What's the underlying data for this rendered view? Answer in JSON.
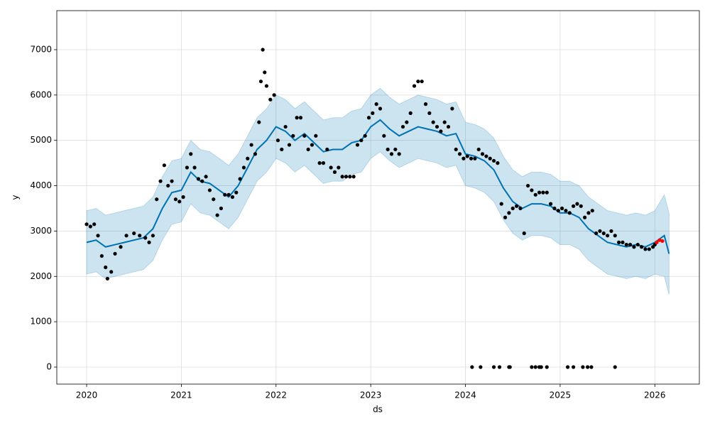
{
  "chart_data": {
    "type": "scatter",
    "x_label": "ds",
    "y_label": "y",
    "xlim": [
      2019.685,
      2026.47
    ],
    "ylim": [
      -376,
      7861
    ],
    "xticks": [
      2020,
      2021,
      2022,
      2023,
      2024,
      2025,
      2026
    ],
    "yticks": [
      0,
      1000,
      2000,
      3000,
      4000,
      5000,
      6000,
      7000
    ],
    "grid": true,
    "forecast": {
      "color": "#0072b2",
      "x": [
        2020,
        2020.1,
        2020.2,
        2020.3,
        2020.4,
        2020.5,
        2020.6,
        2020.7,
        2020.8,
        2020.9,
        2021,
        2021.1,
        2021.2,
        2021.3,
        2021.4,
        2021.5,
        2021.6,
        2021.7,
        2021.8,
        2021.9,
        2022,
        2022.1,
        2022.2,
        2022.3,
        2022.4,
        2022.5,
        2022.6,
        2022.7,
        2022.8,
        2022.9,
        2023,
        2023.1,
        2023.2,
        2023.3,
        2023.4,
        2023.5,
        2023.6,
        2023.7,
        2023.8,
        2023.9,
        2024,
        2024.1,
        2024.2,
        2024.3,
        2024.4,
        2024.5,
        2024.6,
        2024.7,
        2024.8,
        2024.9,
        2025,
        2025.1,
        2025.2,
        2025.3,
        2025.4,
        2025.5,
        2025.6,
        2025.7,
        2025.8,
        2025.9,
        2026,
        2026.1,
        2026.15
      ],
      "values": [
        2750,
        2800,
        2650,
        2700,
        2750,
        2800,
        2850,
        3050,
        3500,
        3850,
        3900,
        4300,
        4100,
        4050,
        3900,
        3750,
        4000,
        4400,
        4800,
        5000,
        5300,
        5200,
        5000,
        5150,
        4950,
        4750,
        4800,
        4800,
        4950,
        5000,
        5300,
        5450,
        5250,
        5100,
        5200,
        5300,
        5250,
        5200,
        5100,
        5150,
        4700,
        4650,
        4550,
        4350,
        3950,
        3650,
        3500,
        3600,
        3600,
        3550,
        3400,
        3400,
        3300,
        3050,
        2900,
        2750,
        2700,
        2650,
        2700,
        2650,
        2750,
        2900,
        2500
      ],
      "lower": [
        2050,
        2100,
        1950,
        2000,
        2050,
        2100,
        2150,
        2350,
        2800,
        3150,
        3200,
        3600,
        3400,
        3350,
        3200,
        3050,
        3300,
        3700,
        4100,
        4300,
        4600,
        4500,
        4300,
        4450,
        4250,
        4050,
        4100,
        4100,
        4250,
        4300,
        4600,
        4750,
        4550,
        4400,
        4500,
        4600,
        4550,
        4500,
        4400,
        4450,
        4000,
        3950,
        3850,
        3650,
        3250,
        2950,
        2800,
        2900,
        2900,
        2850,
        2700,
        2700,
        2600,
        2350,
        2200,
        2050,
        2000,
        1950,
        2000,
        1950,
        2050,
        2000,
        1600
      ],
      "upper": [
        3450,
        3500,
        3350,
        3400,
        3450,
        3500,
        3550,
        3750,
        4200,
        4550,
        4600,
        5000,
        4800,
        4750,
        4600,
        4450,
        4700,
        5100,
        5500,
        5700,
        6000,
        5900,
        5700,
        5850,
        5650,
        5450,
        5500,
        5500,
        5650,
        5700,
        6000,
        6150,
        5950,
        5800,
        5900,
        6000,
        5950,
        5900,
        5800,
        5850,
        5400,
        5350,
        5250,
        5050,
        4650,
        4350,
        4200,
        4300,
        4300,
        4250,
        4100,
        4100,
        4000,
        3750,
        3600,
        3450,
        3400,
        3350,
        3400,
        3350,
        3450,
        3800,
        3400
      ]
    },
    "series": [
      {
        "color": "#000000",
        "x": [
          2020,
          2020.04,
          2020.08,
          2020.12,
          2020.16,
          2020.2,
          2020.22,
          2020.26,
          2020.3,
          2020.36,
          2020.42,
          2020.5,
          2020.56,
          2020.62,
          2020.66,
          2020.7,
          2020.74,
          2020.78,
          2020.82,
          2020.86,
          2020.9,
          2020.94,
          2020.98,
          2021.02,
          2021.06,
          2021.1,
          2021.14,
          2021.18,
          2021.22,
          2021.26,
          2021.3,
          2021.34,
          2021.38,
          2021.42,
          2021.46,
          2021.5,
          2021.54,
          2021.58,
          2021.62,
          2021.66,
          2021.7,
          2021.74,
          2021.78,
          2021.82,
          2021.84,
          2021.86,
          2021.88,
          2021.9,
          2021.94,
          2021.98,
          2022.02,
          2022.06,
          2022.1,
          2022.14,
          2022.18,
          2022.22,
          2022.26,
          2022.3,
          2022.34,
          2022.38,
          2022.42,
          2022.46,
          2022.5,
          2022.54,
          2022.58,
          2022.62,
          2022.66,
          2022.7,
          2022.74,
          2022.78,
          2022.82,
          2022.86,
          2022.9,
          2022.94,
          2022.98,
          2023.02,
          2023.06,
          2023.1,
          2023.14,
          2023.18,
          2023.22,
          2023.26,
          2023.3,
          2023.34,
          2023.38,
          2023.42,
          2023.46,
          2023.5,
          2023.54,
          2023.58,
          2023.62,
          2023.66,
          2023.7,
          2023.74,
          2023.78,
          2023.82,
          2023.86,
          2023.9,
          2023.94,
          2023.98,
          2024.02,
          2024.06,
          2024.1,
          2024.14,
          2024.18,
          2024.22,
          2024.26,
          2024.3,
          2024.34,
          2024.38,
          2024.42,
          2024.46,
          2024.5,
          2024.54,
          2024.58,
          2024.62,
          2024.66,
          2024.7,
          2024.74,
          2024.78,
          2024.82,
          2024.86,
          2024.9,
          2024.94,
          2024.98,
          2025.02,
          2025.06,
          2025.1,
          2025.14,
          2025.18,
          2025.22,
          2025.26,
          2025.3,
          2025.34,
          2025.38,
          2025.42,
          2025.46,
          2025.5,
          2025.54,
          2025.58,
          2025.62,
          2025.66,
          2025.7,
          2025.74,
          2025.78,
          2025.82,
          2025.86,
          2025.9,
          2025.94,
          2025.98,
          2026
        ],
        "values": [
          3150,
          3100,
          3150,
          2900,
          2450,
          2200,
          1950,
          2100,
          2500,
          2650,
          2900,
          2950,
          2900,
          2850,
          2750,
          2900,
          3700,
          4100,
          4450,
          4000,
          4100,
          3700,
          3650,
          3750,
          4400,
          4700,
          4400,
          4150,
          4100,
          4200,
          3900,
          3700,
          3350,
          3500,
          3800,
          3800,
          3750,
          3850,
          4150,
          4400,
          4600,
          4900,
          4700,
          5400,
          6300,
          7000,
          6500,
          6200,
          5900,
          6000,
          5000,
          4800,
          5300,
          4900,
          5100,
          5500,
          5500,
          5100,
          4800,
          4900,
          5100,
          4500,
          4500,
          4800,
          4400,
          4300,
          4400,
          4200,
          4200,
          4200,
          4200,
          4900,
          5000,
          5100,
          5500,
          5600,
          5800,
          5700,
          5100,
          4800,
          4700,
          4800,
          4700,
          5300,
          5400,
          5600,
          6200,
          6300,
          6300,
          5800,
          5600,
          5400,
          5300,
          5200,
          5400,
          5300,
          5700,
          4800,
          4700,
          4600,
          4650,
          4600,
          4600,
          4800,
          4700,
          4650,
          4600,
          4550,
          4500,
          3600,
          3300,
          3400,
          3500,
          3550,
          3500,
          2950,
          4000,
          3900,
          3800,
          3850,
          3850,
          3850,
          3600,
          3500,
          3450,
          3500,
          3450,
          3400,
          3550,
          3600,
          3550,
          3300,
          3400,
          3450,
          2950,
          3000,
          2950,
          2900,
          3000,
          2900,
          2750,
          2750,
          2700,
          2700,
          2650,
          2700,
          2650,
          2600,
          2600,
          2650,
          2700
        ]
      },
      {
        "color": "#000000",
        "x": [
          2024.07,
          2024.16,
          2024.3,
          2024.36,
          2024.46,
          2024.47,
          2024.7,
          2024.74,
          2024.78,
          2024.8,
          2024.86,
          2025.08,
          2025.14,
          2025.24,
          2025.29,
          2025.33,
          2025.58
        ],
        "values": [
          0,
          0,
          0,
          0,
          0,
          0,
          0,
          0,
          0,
          0,
          0,
          0,
          0,
          0,
          0,
          0,
          0
        ]
      },
      {
        "color": "#ff0000",
        "x": [
          2026.02,
          2026.05,
          2026.08
        ],
        "values": [
          2750,
          2800,
          2780
        ]
      }
    ]
  }
}
